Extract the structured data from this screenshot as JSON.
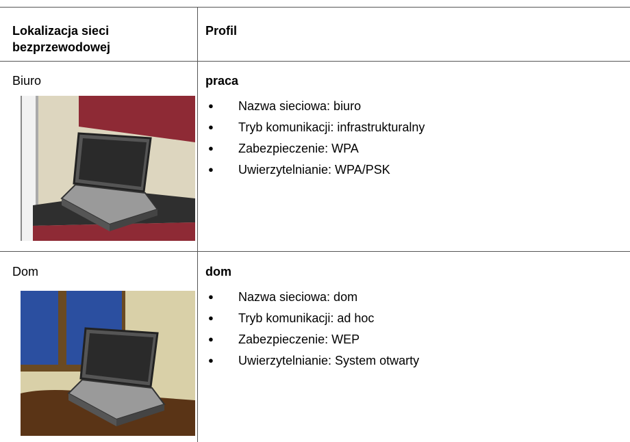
{
  "table": {
    "header": [
      "Lokalizacja sieci bezprzewodowej",
      "Profil"
    ],
    "rows": [
      {
        "location": "Biuro",
        "profile": "praca",
        "items": [
          "Nazwa sieciowa: biuro",
          "Tryb komunikacji: infrastrukturalny",
          "Zabezpieczenie: WPA",
          "Uwierzytelnianie: WPA/PSK"
        ]
      },
      {
        "location": "Dom",
        "profile": "dom",
        "items": [
          "Nazwa sieciowa: dom",
          "Tryb komunikacji: ad hoc",
          "Zabezpieczenie: WEP",
          "Uwierzytelnianie: System otwarty"
        ]
      }
    ]
  }
}
